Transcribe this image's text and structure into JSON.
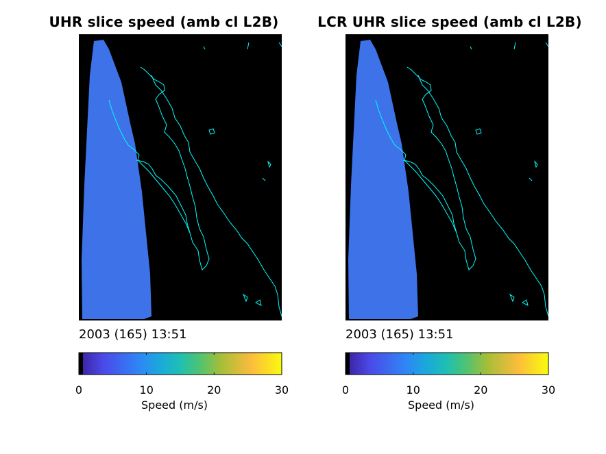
{
  "figure": {
    "panels": [
      {
        "title": "UHR slice speed (amb cl L2B)",
        "timestamp": "2003 (165) 13:51",
        "colorbar": {
          "ticks": [
            "0",
            "10",
            "20",
            "30"
          ],
          "label": "Speed (m/s)"
        }
      },
      {
        "title": "LCR UHR slice speed (amb cl L2B)",
        "timestamp": "2003 (165) 13:51",
        "colorbar": {
          "ticks": [
            "0",
            "10",
            "20",
            "30"
          ],
          "label": "Speed (m/s)"
        }
      }
    ],
    "colors": {
      "background": "#000000",
      "coastline": "#00ffff",
      "swath": "#3d72e8",
      "colormap": "parula",
      "colormap_stops": [
        "#000000",
        "#3e26a8",
        "#4a4ae8",
        "#2e87f6",
        "#1aa9db",
        "#1fbfb2",
        "#52c36f",
        "#a6be38",
        "#e9b93a",
        "#fcce2e",
        "#f9fb0e"
      ]
    }
  }
}
